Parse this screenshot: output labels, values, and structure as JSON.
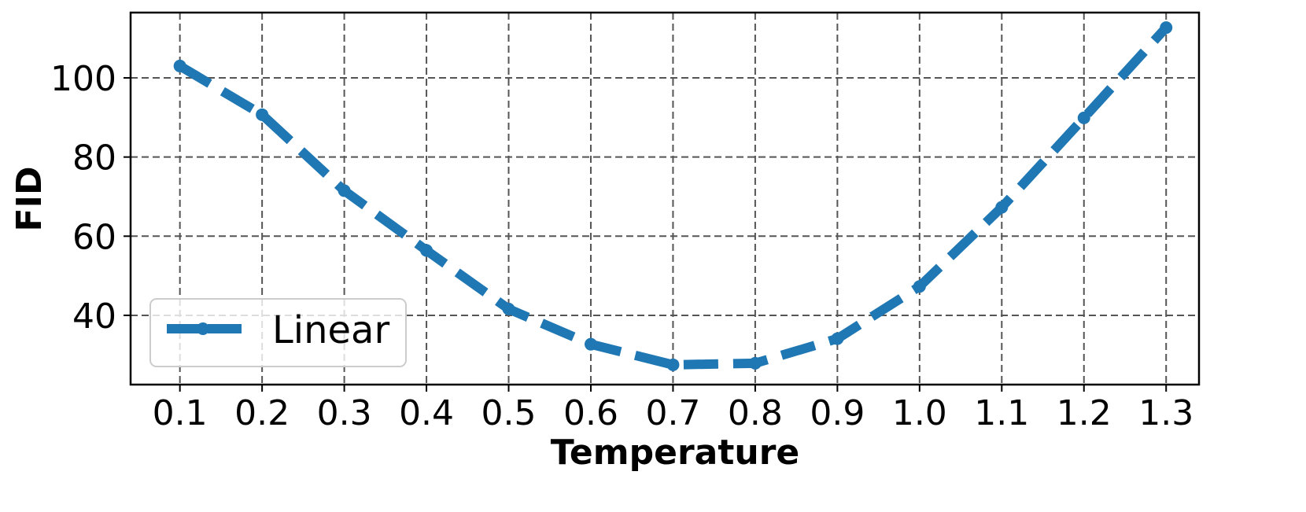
{
  "chart_data": {
    "type": "line",
    "title": "",
    "xlabel": "Temperature",
    "ylabel": "FID",
    "x": [
      0.1,
      0.2,
      0.3,
      0.4,
      0.5,
      0.6,
      0.7,
      0.8,
      0.9,
      1.0,
      1.1,
      1.2,
      1.3
    ],
    "x_tick_labels": [
      "0.1",
      "0.2",
      "0.3",
      "0.4",
      "0.5",
      "0.6",
      "0.7",
      "0.8",
      "0.9",
      "1.0",
      "1.1",
      "1.2",
      "1.3"
    ],
    "y_ticks": [
      40,
      60,
      80,
      100
    ],
    "y_tick_labels": [
      "40",
      "60",
      "80",
      "100"
    ],
    "xlim": [
      0.04,
      1.34
    ],
    "ylim": [
      22.5,
      116.5
    ],
    "grid": true,
    "grid_style": "dashed",
    "legend_position": "lower left",
    "series": [
      {
        "name": "Linear",
        "color": "#1f77b4",
        "line_style": "dashed",
        "marker": "circle",
        "values": [
          103.0,
          90.7,
          71.5,
          56.4,
          41.6,
          32.7,
          27.5,
          27.9,
          34.1,
          47.3,
          67.3,
          89.9,
          112.7
        ]
      }
    ]
  }
}
